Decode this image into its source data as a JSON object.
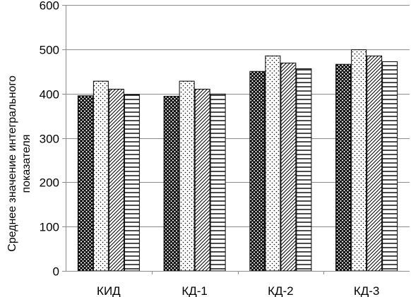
{
  "chart_data": {
    "type": "bar",
    "categories": [
      "КИД",
      "КД-1",
      "КД-2",
      "КД-3"
    ],
    "series": [
      {
        "pattern": "crosshatch",
        "values": [
          395,
          394,
          450,
          466
        ]
      },
      {
        "pattern": "dots",
        "values": [
          428,
          428,
          485,
          499
        ]
      },
      {
        "pattern": "diagonal",
        "values": [
          410,
          410,
          469,
          485
        ]
      },
      {
        "pattern": "horizontal",
        "values": [
          398,
          399,
          456,
          472
        ]
      }
    ],
    "ylabel_lines": [
      "Среднее значение интегрального",
      "показателя"
    ],
    "ylim": [
      0,
      600
    ],
    "yticks": [
      0,
      100,
      200,
      300,
      400,
      500,
      600
    ],
    "grid": true,
    "legend": "none"
  }
}
